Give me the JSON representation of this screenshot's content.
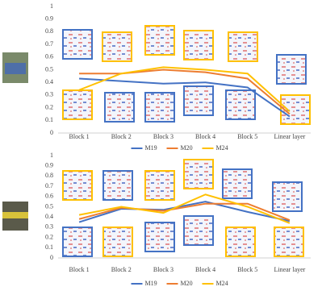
{
  "chart_data": [
    {
      "type": "line",
      "categories": [
        "Block 1",
        "Block 2",
        "Block 3",
        "Block 4",
        "Block 5",
        "Linear layer"
      ],
      "series": [
        {
          "name": "M19",
          "color": "#4472c4",
          "values": [
            0.43,
            0.41,
            0.39,
            0.4,
            0.36,
            0.13
          ]
        },
        {
          "name": "M20",
          "color": "#ed7d31",
          "values": [
            0.47,
            0.47,
            0.5,
            0.48,
            0.43,
            0.15
          ]
        },
        {
          "name": "M24",
          "color": "#ffc000",
          "values": [
            0.34,
            0.47,
            0.52,
            0.5,
            0.47,
            0.17
          ]
        }
      ],
      "ylim": [
        0,
        1
      ],
      "yticks": [
        0,
        0.1,
        0.2,
        0.3,
        0.4,
        0.5,
        0.6,
        0.7,
        0.8,
        0.9,
        1
      ],
      "grid": false,
      "legend": "bottom"
    },
    {
      "type": "line",
      "categories": [
        "Block 1",
        "Block 2",
        "Block 3",
        "Block 4",
        "Block 5",
        "Linear layer"
      ],
      "series": [
        {
          "name": "M19",
          "color": "#4472c4",
          "values": [
            0.35,
            0.48,
            0.47,
            0.55,
            0.45,
            0.36
          ]
        },
        {
          "name": "M20",
          "color": "#ed7d31",
          "values": [
            0.38,
            0.49,
            0.46,
            0.53,
            0.53,
            0.37
          ]
        },
        {
          "name": "M24",
          "color": "#ffc000",
          "values": [
            0.42,
            0.5,
            0.44,
            0.62,
            0.5,
            0.34
          ]
        }
      ],
      "ylim": [
        0,
        1
      ],
      "yticks": [
        0,
        0.1,
        0.2,
        0.3,
        0.4,
        0.5,
        0.6,
        0.7,
        0.8,
        0.9,
        1
      ],
      "grid": false,
      "legend": "bottom"
    }
  ]
}
